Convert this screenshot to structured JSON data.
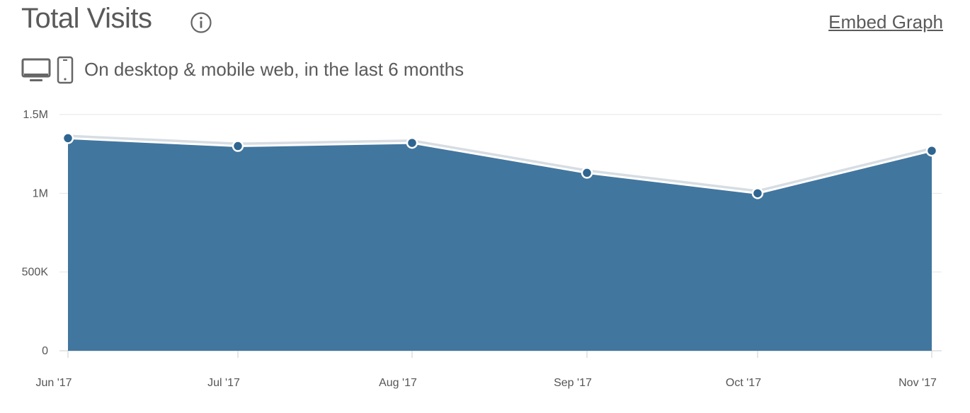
{
  "header": {
    "title": "Total Visits",
    "embed_label": "Embed Graph",
    "subtitle": "On desktop & mobile web, in the last 6 months"
  },
  "icons": {
    "info": "info-icon",
    "desktop": "desktop-icon",
    "mobile": "mobile-icon"
  },
  "colors": {
    "area_fill": "#41769f",
    "line": "#ffffff",
    "marker": "#2f6590",
    "grid": "#e6e6e6"
  },
  "chart_data": {
    "type": "area",
    "categories": [
      "Jun '17",
      "Jul '17",
      "Aug '17",
      "Sep '17",
      "Oct '17",
      "Nov '17"
    ],
    "series": [
      {
        "values": [
          1350000,
          1300000,
          1320000,
          1130000,
          1000000,
          1270000
        ]
      }
    ],
    "ylim": [
      0,
      1500000
    ],
    "yticks": [
      {
        "value": 0,
        "label": "0"
      },
      {
        "value": 500000,
        "label": "500K"
      },
      {
        "value": 1000000,
        "label": "1M"
      },
      {
        "value": 1500000,
        "label": "1.5M"
      }
    ],
    "grid": true,
    "legend": false
  }
}
